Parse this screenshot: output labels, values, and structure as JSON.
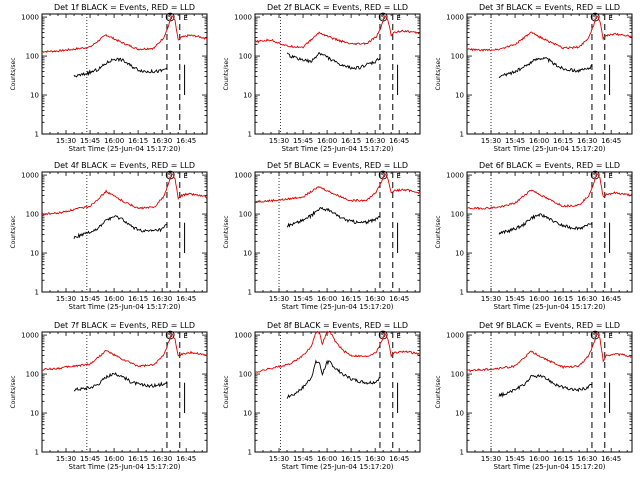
{
  "colors": {
    "events": "#000000",
    "lld": "#e00000",
    "axis": "#000000",
    "background": "#ffffff"
  },
  "common": {
    "x_tick_labels": [
      "15:30",
      "15:45",
      "16:00",
      "16:15",
      "16:30",
      "16:45"
    ],
    "x_tick_minutes": [
      15,
      30,
      45,
      60,
      75,
      90
    ],
    "y_tick_labels": [
      "1",
      "10",
      "100",
      "1000"
    ],
    "y_tick_values": [
      1,
      10,
      100,
      1000
    ],
    "xlabel": "Start Time (25-Jun-04 15:17:20)",
    "ylabel": "Counts/sec",
    "marker_S": "S",
    "marker_E": "E",
    "x_range_min": [
      0,
      103
    ],
    "ylim": [
      1,
      1200
    ]
  },
  "chart_data": [
    {
      "type": "line",
      "title": "Det 1f BLACK = Events, RED = LLD",
      "dotted_line_min": 28,
      "dashed_lines_min": [
        78,
        86
      ],
      "s_marker_min": 80,
      "e_marker_min": 87,
      "series": [
        {
          "name": "LLD",
          "x": [
            0,
            10,
            20,
            30,
            40,
            50,
            60,
            70,
            76,
            79,
            81,
            83,
            85,
            87,
            92,
            97,
            103
          ],
          "y": [
            130,
            135,
            150,
            170,
            350,
            220,
            150,
            160,
            300,
            600,
            1100,
            800,
            250,
            300,
            340,
            320,
            280
          ]
        },
        {
          "name": "Events",
          "x": [
            20,
            25,
            30,
            35,
            40,
            45,
            50,
            55,
            60,
            65,
            70,
            75,
            78
          ],
          "y": [
            30,
            33,
            38,
            45,
            65,
            85,
            80,
            58,
            45,
            40,
            40,
            42,
            50
          ]
        }
      ]
    },
    {
      "type": "line",
      "title": "Det 2f BLACK = Events, RED = LLD",
      "dotted_line_min": 16,
      "dashed_lines_min": [
        78,
        86
      ],
      "s_marker_min": 80,
      "e_marker_min": 87,
      "series": [
        {
          "name": "LLD",
          "x": [
            0,
            10,
            20,
            30,
            40,
            50,
            60,
            70,
            76,
            79,
            81,
            83,
            85,
            87,
            92,
            97,
            103
          ],
          "y": [
            230,
            260,
            180,
            170,
            400,
            270,
            200,
            210,
            320,
            600,
            1100,
            800,
            350,
            400,
            450,
            420,
            380
          ]
        },
        {
          "name": "Events",
          "x": [
            20,
            25,
            30,
            35,
            40,
            45,
            50,
            55,
            60,
            65,
            70,
            75,
            78
          ],
          "y": [
            110,
            90,
            80,
            70,
            120,
            95,
            70,
            55,
            50,
            50,
            60,
            70,
            90
          ]
        }
      ]
    },
    {
      "type": "line",
      "title": "Det 3f BLACK = Events, RED = LLD",
      "dotted_line_min": 15,
      "dashed_lines_min": [
        78,
        86
      ],
      "s_marker_min": 80,
      "e_marker_min": 87,
      "series": [
        {
          "name": "LLD",
          "x": [
            0,
            10,
            20,
            30,
            40,
            50,
            60,
            70,
            76,
            79,
            81,
            83,
            85,
            87,
            92,
            97,
            103
          ],
          "y": [
            150,
            140,
            150,
            200,
            400,
            250,
            160,
            170,
            300,
            600,
            1100,
            800,
            280,
            330,
            370,
            350,
            320
          ]
        },
        {
          "name": "Events",
          "x": [
            20,
            25,
            30,
            35,
            40,
            45,
            50,
            55,
            60,
            65,
            70,
            75,
            78
          ],
          "y": [
            30,
            34,
            40,
            50,
            70,
            90,
            85,
            60,
            48,
            44,
            42,
            46,
            55
          ]
        }
      ]
    },
    {
      "type": "line",
      "title": "Det 4f BLACK = Events, RED = LLD",
      "dotted_line_min": 28,
      "dashed_lines_min": [
        78,
        86
      ],
      "s_marker_min": 80,
      "e_marker_min": 87,
      "series": [
        {
          "name": "LLD",
          "x": [
            0,
            10,
            20,
            30,
            40,
            50,
            60,
            70,
            76,
            79,
            81,
            83,
            85,
            87,
            92,
            97,
            103
          ],
          "y": [
            100,
            105,
            130,
            160,
            380,
            220,
            140,
            150,
            280,
            600,
            1100,
            800,
            250,
            300,
            330,
            310,
            270
          ]
        },
        {
          "name": "Events",
          "x": [
            20,
            25,
            30,
            35,
            40,
            45,
            50,
            55,
            60,
            65,
            70,
            75,
            78
          ],
          "y": [
            25,
            30,
            35,
            42,
            70,
            85,
            75,
            50,
            40,
            36,
            37,
            40,
            55
          ]
        }
      ]
    },
    {
      "type": "line",
      "title": "Det 5f BLACK = Events, RED = LLD",
      "dotted_line_min": 15,
      "dashed_lines_min": [
        78,
        86
      ],
      "s_marker_min": 80,
      "e_marker_min": 87,
      "series": [
        {
          "name": "LLD",
          "x": [
            0,
            10,
            20,
            30,
            40,
            50,
            60,
            70,
            76,
            79,
            81,
            83,
            85,
            87,
            92,
            97,
            103
          ],
          "y": [
            210,
            220,
            240,
            280,
            500,
            320,
            220,
            230,
            380,
            700,
            1100,
            800,
            350,
            400,
            420,
            400,
            350
          ]
        },
        {
          "name": "Events",
          "x": [
            20,
            25,
            30,
            35,
            40,
            45,
            50,
            55,
            60,
            65,
            70,
            75,
            78
          ],
          "y": [
            50,
            58,
            70,
            90,
            140,
            130,
            100,
            75,
            65,
            60,
            62,
            70,
            90
          ]
        }
      ]
    },
    {
      "type": "line",
      "title": "Det 6f BLACK = Events, RED = LLD",
      "dotted_line_min": 15,
      "dashed_lines_min": [
        78,
        86
      ],
      "s_marker_min": 80,
      "e_marker_min": 87,
      "series": [
        {
          "name": "LLD",
          "x": [
            0,
            10,
            20,
            30,
            40,
            50,
            60,
            70,
            76,
            79,
            81,
            83,
            85,
            87,
            92,
            97,
            103
          ],
          "y": [
            140,
            140,
            150,
            190,
            420,
            250,
            160,
            170,
            300,
            600,
            1100,
            800,
            280,
            320,
            350,
            330,
            300
          ]
        },
        {
          "name": "Events",
          "x": [
            20,
            25,
            30,
            35,
            40,
            45,
            50,
            55,
            60,
            65,
            70,
            75,
            78
          ],
          "y": [
            32,
            36,
            42,
            52,
            80,
            95,
            85,
            60,
            50,
            45,
            44,
            48,
            60
          ]
        }
      ]
    },
    {
      "type": "line",
      "title": "Det 7f BLACK = Events, RED = LLD",
      "dotted_line_min": 28,
      "dashed_lines_min": [
        78,
        86
      ],
      "s_marker_min": 80,
      "e_marker_min": 87,
      "series": [
        {
          "name": "LLD",
          "x": [
            0,
            10,
            20,
            30,
            40,
            50,
            60,
            70,
            76,
            79,
            81,
            83,
            85,
            87,
            92,
            97,
            103
          ],
          "y": [
            130,
            140,
            160,
            180,
            400,
            240,
            160,
            170,
            320,
            650,
            1100,
            800,
            280,
            320,
            360,
            340,
            300
          ]
        },
        {
          "name": "Events",
          "x": [
            20,
            25,
            30,
            35,
            40,
            45,
            50,
            55,
            60,
            65,
            70,
            75,
            78
          ],
          "y": [
            40,
            42,
            45,
            55,
            85,
            100,
            90,
            65,
            55,
            50,
            50,
            55,
            65
          ]
        }
      ]
    },
    {
      "type": "line",
      "title": "Det 8f BLACK = Events, RED = LLD",
      "dotted_line_min": 16,
      "dashed_lines_min": [
        78,
        86
      ],
      "s_marker_min": 80,
      "e_marker_min": 87,
      "series": [
        {
          "name": "LLD",
          "x": [
            0,
            10,
            20,
            25,
            30,
            35,
            38,
            40,
            42,
            45,
            47,
            50,
            55,
            60,
            70,
            76,
            79,
            81,
            83,
            85,
            87,
            92,
            97,
            103
          ],
          "y": [
            110,
            140,
            170,
            220,
            300,
            500,
            1200,
            1200,
            600,
            1200,
            1200,
            700,
            400,
            300,
            280,
            380,
            700,
            1100,
            800,
            300,
            350,
            380,
            360,
            320
          ]
        },
        {
          "name": "Events",
          "x": [
            20,
            25,
            30,
            35,
            38,
            40,
            42,
            45,
            47,
            50,
            55,
            60,
            65,
            70,
            75,
            78
          ],
          "y": [
            25,
            32,
            45,
            80,
            200,
            200,
            100,
            200,
            200,
            140,
            100,
            75,
            65,
            60,
            62,
            80
          ]
        }
      ]
    },
    {
      "type": "line",
      "title": "Det 9f BLACK = Events, RED = LLD",
      "dotted_line_min": 15,
      "dashed_lines_min": [
        78,
        86
      ],
      "s_marker_min": 80,
      "e_marker_min": 87,
      "series": [
        {
          "name": "LLD",
          "x": [
            0,
            10,
            20,
            30,
            40,
            50,
            60,
            70,
            76,
            79,
            81,
            83,
            85,
            87,
            92,
            97,
            103
          ],
          "y": [
            120,
            130,
            140,
            160,
            380,
            230,
            150,
            160,
            300,
            600,
            1100,
            800,
            220,
            300,
            330,
            310,
            280
          ]
        },
        {
          "name": "Events",
          "x": [
            20,
            25,
            30,
            35,
            40,
            45,
            50,
            55,
            60,
            65,
            70,
            75,
            78
          ],
          "y": [
            28,
            32,
            40,
            50,
            85,
            90,
            75,
            55,
            45,
            40,
            40,
            44,
            55
          ]
        }
      ]
    }
  ]
}
